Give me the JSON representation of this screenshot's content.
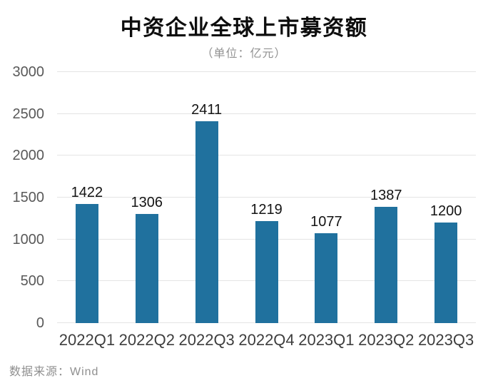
{
  "chart_data": {
    "type": "bar",
    "title": "中资企业全球上市募资额",
    "subtitle_unit": "（单位：亿元）",
    "categories": [
      "2022Q1",
      "2022Q2",
      "2022Q3",
      "2022Q4",
      "2023Q1",
      "2023Q2",
      "2023Q3"
    ],
    "values": [
      1422,
      1306,
      2411,
      1219,
      1077,
      1387,
      1200
    ],
    "xlabel": "",
    "ylabel": "",
    "ylim": [
      0,
      3000
    ],
    "yticks": [
      0,
      500,
      1000,
      1500,
      2000,
      2500,
      3000
    ],
    "grid": true,
    "legend_position": "none",
    "source": "数据来源：Wind",
    "bar_color": "#20719E",
    "grid_color": "#e4e4e4",
    "ytick_color": "#595959",
    "xtick_color": "#3e3e3e",
    "value_label_color": "#141414",
    "title_color": "#0d0d0d",
    "subtitle_color": "#929292",
    "source_color": "#8f8f8f"
  }
}
